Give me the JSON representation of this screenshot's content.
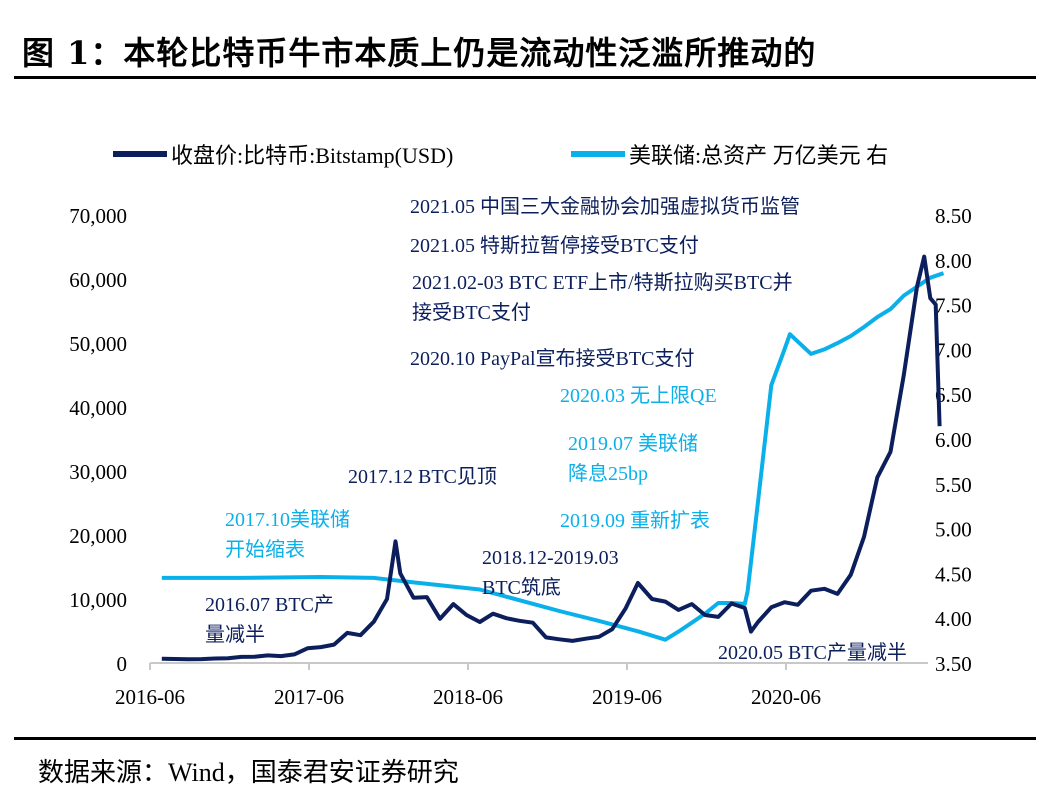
{
  "title": "图 1：本轮比特币牛市本质上仍是流动性泛滥所推动的",
  "source": "数据来源：Wind，国泰君安证券研究",
  "colors": {
    "btc": "#0c1f5c",
    "fed": "#0ab0ea"
  },
  "annotations": [
    {
      "lines": [
        "2021.05 中国三大金融协会加强虚拟货币监管"
      ],
      "color": "dark"
    },
    {
      "lines": [
        "2021.05 特斯拉暂停接受BTC支付"
      ],
      "color": "dark"
    },
    {
      "lines": [
        "2021.02-03 BTC ETF上市/特斯拉购买BTC并",
        "接受BTC支付"
      ],
      "color": "dark"
    },
    {
      "lines": [
        "2020.10 PayPal宣布接受BTC支付"
      ],
      "color": "dark"
    },
    {
      "lines": [
        "2020.03 无上限QE"
      ],
      "color": "light"
    },
    {
      "lines": [
        "2019.07 美联储",
        "降息25bp"
      ],
      "color": "light"
    },
    {
      "lines": [
        "2019.09 重新扩表"
      ],
      "color": "light"
    },
    {
      "lines": [
        "2017.12 BTC见顶"
      ],
      "color": "dark"
    },
    {
      "lines": [
        "2017.10美联储",
        "开始缩表"
      ],
      "color": "light"
    },
    {
      "lines": [
        "2018.12-2019.03",
        "BTC筑底"
      ],
      "color": "dark"
    },
    {
      "lines": [
        "2016.07 BTC产",
        "量减半"
      ],
      "color": "dark"
    },
    {
      "lines": [
        "2020.05 BTC产量减半"
      ],
      "color": "dark"
    }
  ],
  "chart_data": {
    "type": "line",
    "title": "",
    "legend_position": "top",
    "grid": false,
    "x_ticks": [
      "2016-06",
      "2017-06",
      "2018-06",
      "2019-06",
      "2020-06"
    ],
    "y_left": {
      "range": [
        0,
        70000
      ],
      "ticks": [
        "0",
        "10,000",
        "20,000",
        "30,000",
        "40,000",
        "50,000",
        "60,000",
        "70,000"
      ]
    },
    "y_right": {
      "range": [
        3.5,
        8.5
      ],
      "ticks": [
        "3.50",
        "4.00",
        "4.50",
        "5.00",
        "5.50",
        "6.00",
        "6.50",
        "7.00",
        "7.50",
        "8.00",
        "8.50"
      ]
    },
    "series": [
      {
        "name": "收盘价:比特币:Bitstamp(USD)",
        "axis": "left",
        "color": "#0c1f5c",
        "x": [
          "2016-06",
          "2016-07",
          "2016-08",
          "2016-09",
          "2016-10",
          "2016-11",
          "2016-12",
          "2017-01",
          "2017-02",
          "2017-03",
          "2017-04",
          "2017-05",
          "2017-06",
          "2017-07",
          "2017-08",
          "2017-09",
          "2017-10",
          "2017-11",
          "2017-12-17",
          "2017-12",
          "2018-01",
          "2018-02",
          "2018-03",
          "2018-04",
          "2018-05",
          "2018-06",
          "2018-07",
          "2018-08",
          "2018-09",
          "2018-10",
          "2018-11",
          "2018-12",
          "2019-01",
          "2019-02",
          "2019-03",
          "2019-04",
          "2019-05",
          "2019-06-26",
          "2019-07",
          "2019-08",
          "2019-09",
          "2019-10",
          "2019-11",
          "2019-12",
          "2020-01",
          "2020-02",
          "2020-03-12",
          "2020-03",
          "2020-04",
          "2020-05",
          "2020-06",
          "2020-07",
          "2020-08",
          "2020-09",
          "2020-10",
          "2020-11",
          "2020-12",
          "2021-01",
          "2021-02",
          "2021-03",
          "2021-04-14",
          "2021-04",
          "2021-05-10",
          "2021-05-19"
        ],
        "y": [
          670,
          620,
          575,
          610,
          700,
          740,
          960,
          970,
          1190,
          1080,
          1350,
          2300,
          2480,
          2870,
          4700,
          4340,
          6450,
          10000,
          19000,
          14000,
          10200,
          10300,
          6900,
          9200,
          7500,
          6400,
          7700,
          7000,
          6600,
          6300,
          4000,
          3700,
          3450,
          3800,
          4100,
          5300,
          8500,
          12500,
          10000,
          9600,
          8300,
          9200,
          7500,
          7200,
          9300,
          8600,
          4900,
          6400,
          8700,
          9500,
          9100,
          11300,
          11600,
          10800,
          13800,
          19700,
          29000,
          33000,
          45000,
          58800,
          63500,
          57000,
          56000,
          37000
        ]
      },
      {
        "name": "美联储:总资产 万亿美元 右",
        "axis": "right",
        "color": "#0ab0ea",
        "x": [
          "2016-06",
          "2016-12",
          "2017-06",
          "2017-10",
          "2018-01",
          "2018-06",
          "2018-12",
          "2019-03",
          "2019-06",
          "2019-08",
          "2019-09",
          "2019-10",
          "2019-11",
          "2019-12",
          "2020-01",
          "2020-02",
          "2020-03-04",
          "2020-03",
          "2020-04",
          "2020-05",
          "2020-06-10",
          "2020-07",
          "2020-08",
          "2020-09",
          "2020-10",
          "2020-11",
          "2020-12",
          "2021-01",
          "2021-02",
          "2021-03",
          "2021-04",
          "2021-05"
        ],
        "y": [
          4.45,
          4.45,
          4.46,
          4.45,
          4.4,
          4.32,
          4.08,
          3.97,
          3.85,
          3.76,
          3.85,
          3.95,
          4.05,
          4.17,
          4.17,
          4.16,
          4.3,
          5.3,
          6.6,
          7.0,
          7.17,
          6.95,
          7.0,
          7.07,
          7.15,
          7.25,
          7.36,
          7.45,
          7.6,
          7.7,
          7.8,
          7.85
        ]
      }
    ]
  }
}
